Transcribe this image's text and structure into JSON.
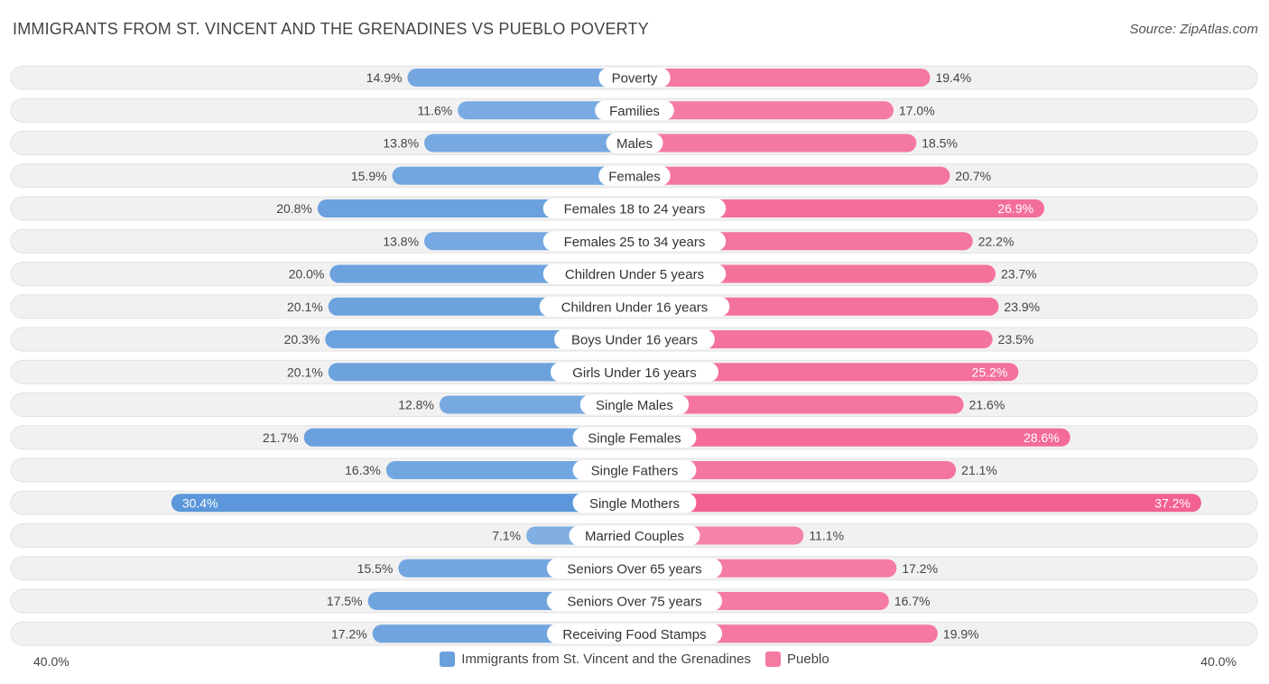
{
  "header": {
    "title": "IMMIGRANTS FROM ST. VINCENT AND THE GRENADINES VS PUEBLO POVERTY",
    "source": "Source: ZipAtlas.com"
  },
  "colors": {
    "left_bar": "#6aa0dc",
    "right_bar": "#f47aa0",
    "row_bg": "#efefef"
  },
  "chart_data": {
    "type": "bar",
    "orientation": "horizontal-diverging",
    "title": "IMMIGRANTS FROM ST. VINCENT AND THE GRENADINES VS PUEBLO POVERTY",
    "axis_min_label": "40.0%",
    "axis_max_label": "40.0%",
    "xlim": [
      0,
      40
    ],
    "categories": [
      "Poverty",
      "Families",
      "Males",
      "Females",
      "Females 18 to 24 years",
      "Females 25 to 34 years",
      "Children Under 5 years",
      "Children Under 16 years",
      "Boys Under 16 years",
      "Girls Under 16 years",
      "Single Males",
      "Single Females",
      "Single Fathers",
      "Single Mothers",
      "Married Couples",
      "Seniors Over 65 years",
      "Seniors Over 75 years",
      "Receiving Food Stamps"
    ],
    "series": [
      {
        "name": "Immigrants from St. Vincent and the Grenadines",
        "values": [
          14.9,
          11.6,
          13.8,
          15.9,
          20.8,
          13.8,
          20.0,
          20.1,
          20.3,
          20.1,
          12.8,
          21.7,
          16.3,
          30.4,
          7.1,
          15.5,
          17.5,
          17.2
        ],
        "labels": [
          "14.9%",
          "11.6%",
          "13.8%",
          "15.9%",
          "20.8%",
          "13.8%",
          "20.0%",
          "20.1%",
          "20.3%",
          "20.1%",
          "12.8%",
          "21.7%",
          "16.3%",
          "30.4%",
          "7.1%",
          "15.5%",
          "17.5%",
          "17.2%"
        ]
      },
      {
        "name": "Pueblo",
        "values": [
          19.4,
          17.0,
          18.5,
          20.7,
          26.9,
          22.2,
          23.7,
          23.9,
          23.5,
          25.2,
          21.6,
          28.6,
          21.1,
          37.2,
          11.1,
          17.2,
          16.7,
          19.9
        ],
        "labels": [
          "19.4%",
          "17.0%",
          "18.5%",
          "20.7%",
          "26.9%",
          "22.2%",
          "23.7%",
          "23.9%",
          "23.5%",
          "25.2%",
          "21.6%",
          "28.6%",
          "21.1%",
          "37.2%",
          "11.1%",
          "17.2%",
          "16.7%",
          "19.9%"
        ]
      }
    ],
    "legend": [
      "Immigrants from St. Vincent and the Grenadines",
      "Pueblo"
    ],
    "legend_position": "bottom-center"
  }
}
